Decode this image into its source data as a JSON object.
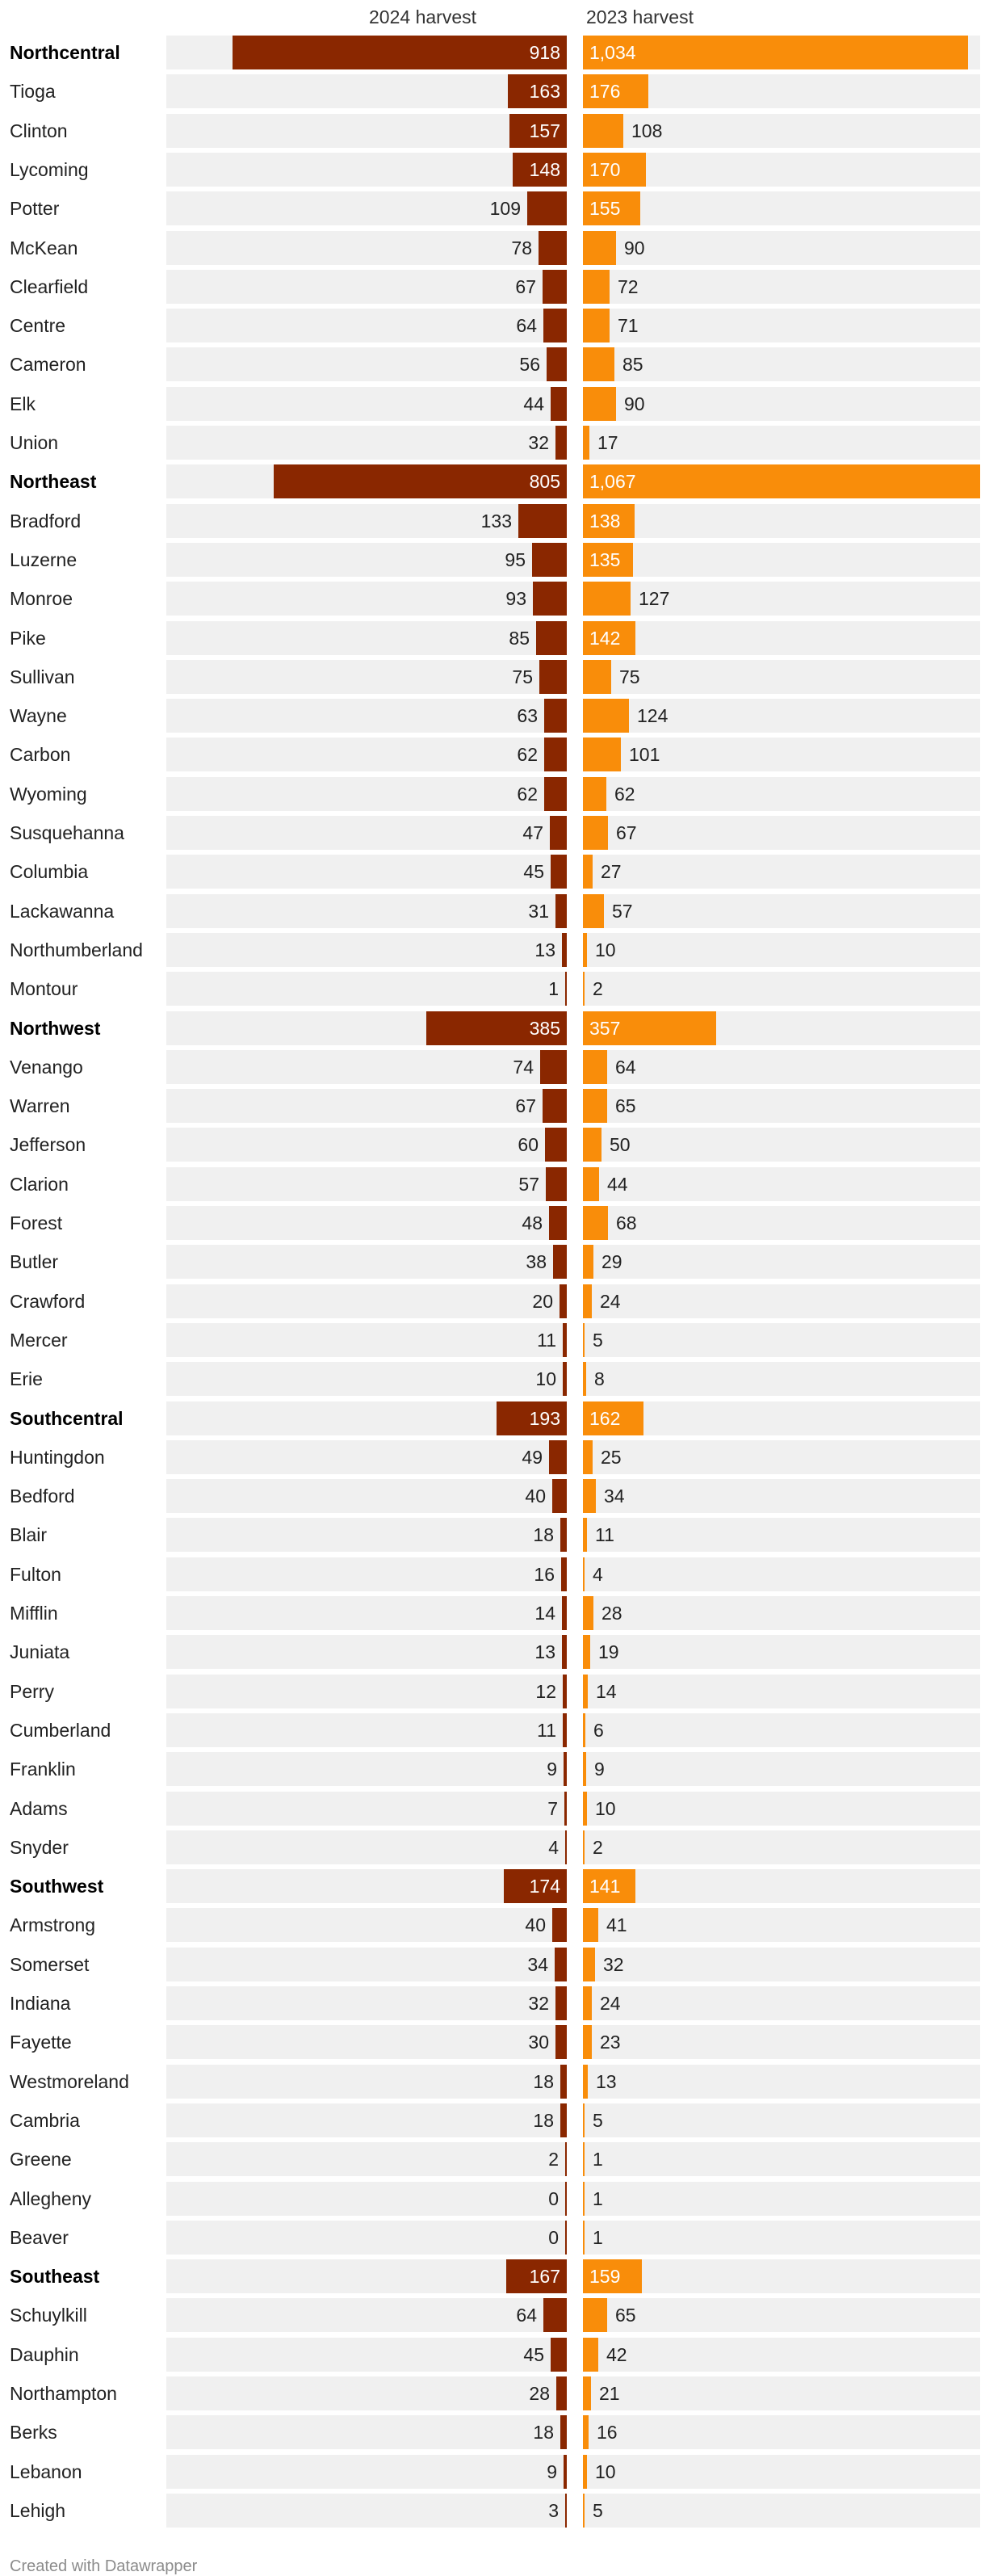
{
  "headers": {
    "col2024": "2024 harvest",
    "col2023": "2023 harvest"
  },
  "footer": "Created with Datawrapper",
  "colors": {
    "bar2024": "#8a2700",
    "bar2023": "#f98d0a",
    "rowBackground": "#f0f0f0"
  },
  "chart_data": {
    "type": "bar",
    "title": "",
    "xlabel": "",
    "ylabel": "",
    "series": [
      {
        "name": "2024 harvest",
        "color": "#8a2700"
      },
      {
        "name": "2023 harvest",
        "color": "#f98d0a"
      }
    ],
    "xlim_2024": [
      0,
      1100
    ],
    "xlim_2023": [
      0,
      1067
    ],
    "rows": [
      {
        "name": "Northcentral",
        "region": true,
        "v2024": 918,
        "v2023": 1034,
        "l2024": "918",
        "l2023": "1,034"
      },
      {
        "name": "Tioga",
        "region": false,
        "v2024": 163,
        "v2023": 176,
        "l2024": "163",
        "l2023": "176"
      },
      {
        "name": "Clinton",
        "region": false,
        "v2024": 157,
        "v2023": 108,
        "l2024": "157",
        "l2023": "108"
      },
      {
        "name": "Lycoming",
        "region": false,
        "v2024": 148,
        "v2023": 170,
        "l2024": "148",
        "l2023": "170"
      },
      {
        "name": "Potter",
        "region": false,
        "v2024": 109,
        "v2023": 155,
        "l2024": "109",
        "l2023": "155"
      },
      {
        "name": "McKean",
        "region": false,
        "v2024": 78,
        "v2023": 90,
        "l2024": "78",
        "l2023": "90"
      },
      {
        "name": "Clearfield",
        "region": false,
        "v2024": 67,
        "v2023": 72,
        "l2024": "67",
        "l2023": "72"
      },
      {
        "name": "Centre",
        "region": false,
        "v2024": 64,
        "v2023": 71,
        "l2024": "64",
        "l2023": "71"
      },
      {
        "name": "Cameron",
        "region": false,
        "v2024": 56,
        "v2023": 85,
        "l2024": "56",
        "l2023": "85"
      },
      {
        "name": "Elk",
        "region": false,
        "v2024": 44,
        "v2023": 90,
        "l2024": "44",
        "l2023": "90"
      },
      {
        "name": "Union",
        "region": false,
        "v2024": 32,
        "v2023": 17,
        "l2024": "32",
        "l2023": "17"
      },
      {
        "name": "Northeast",
        "region": true,
        "v2024": 805,
        "v2023": 1067,
        "l2024": "805",
        "l2023": "1,067"
      },
      {
        "name": "Bradford",
        "region": false,
        "v2024": 133,
        "v2023": 138,
        "l2024": "133",
        "l2023": "138"
      },
      {
        "name": "Luzerne",
        "region": false,
        "v2024": 95,
        "v2023": 135,
        "l2024": "95",
        "l2023": "135"
      },
      {
        "name": "Monroe",
        "region": false,
        "v2024": 93,
        "v2023": 127,
        "l2024": "93",
        "l2023": "127"
      },
      {
        "name": "Pike",
        "region": false,
        "v2024": 85,
        "v2023": 142,
        "l2024": "85",
        "l2023": "142"
      },
      {
        "name": "Sullivan",
        "region": false,
        "v2024": 75,
        "v2023": 75,
        "l2024": "75",
        "l2023": "75"
      },
      {
        "name": "Wayne",
        "region": false,
        "v2024": 63,
        "v2023": 124,
        "l2024": "63",
        "l2023": "124"
      },
      {
        "name": "Carbon",
        "region": false,
        "v2024": 62,
        "v2023": 101,
        "l2024": "62",
        "l2023": "101"
      },
      {
        "name": "Wyoming",
        "region": false,
        "v2024": 62,
        "v2023": 62,
        "l2024": "62",
        "l2023": "62"
      },
      {
        "name": "Susquehanna",
        "region": false,
        "v2024": 47,
        "v2023": 67,
        "l2024": "47",
        "l2023": "67"
      },
      {
        "name": "Columbia",
        "region": false,
        "v2024": 45,
        "v2023": 27,
        "l2024": "45",
        "l2023": "27"
      },
      {
        "name": "Lackawanna",
        "region": false,
        "v2024": 31,
        "v2023": 57,
        "l2024": "31",
        "l2023": "57"
      },
      {
        "name": "Northumberland",
        "region": false,
        "v2024": 13,
        "v2023": 10,
        "l2024": "13",
        "l2023": "10"
      },
      {
        "name": "Montour",
        "region": false,
        "v2024": 1,
        "v2023": 2,
        "l2024": "1",
        "l2023": "2"
      },
      {
        "name": "Northwest",
        "region": true,
        "v2024": 385,
        "v2023": 357,
        "l2024": "385",
        "l2023": "357"
      },
      {
        "name": "Venango",
        "region": false,
        "v2024": 74,
        "v2023": 64,
        "l2024": "74",
        "l2023": "64"
      },
      {
        "name": "Warren",
        "region": false,
        "v2024": 67,
        "v2023": 65,
        "l2024": "67",
        "l2023": "65"
      },
      {
        "name": "Jefferson",
        "region": false,
        "v2024": 60,
        "v2023": 50,
        "l2024": "60",
        "l2023": "50"
      },
      {
        "name": "Clarion",
        "region": false,
        "v2024": 57,
        "v2023": 44,
        "l2024": "57",
        "l2023": "44"
      },
      {
        "name": "Forest",
        "region": false,
        "v2024": 48,
        "v2023": 68,
        "l2024": "48",
        "l2023": "68"
      },
      {
        "name": "Butler",
        "region": false,
        "v2024": 38,
        "v2023": 29,
        "l2024": "38",
        "l2023": "29"
      },
      {
        "name": "Crawford",
        "region": false,
        "v2024": 20,
        "v2023": 24,
        "l2024": "20",
        "l2023": "24"
      },
      {
        "name": "Mercer",
        "region": false,
        "v2024": 11,
        "v2023": 5,
        "l2024": "11",
        "l2023": "5"
      },
      {
        "name": "Erie",
        "region": false,
        "v2024": 10,
        "v2023": 8,
        "l2024": "10",
        "l2023": "8"
      },
      {
        "name": "Southcentral",
        "region": true,
        "v2024": 193,
        "v2023": 162,
        "l2024": "193",
        "l2023": "162"
      },
      {
        "name": "Huntingdon",
        "region": false,
        "v2024": 49,
        "v2023": 25,
        "l2024": "49",
        "l2023": "25"
      },
      {
        "name": "Bedford",
        "region": false,
        "v2024": 40,
        "v2023": 34,
        "l2024": "40",
        "l2023": "34"
      },
      {
        "name": "Blair",
        "region": false,
        "v2024": 18,
        "v2023": 11,
        "l2024": "18",
        "l2023": "11"
      },
      {
        "name": "Fulton",
        "region": false,
        "v2024": 16,
        "v2023": 4,
        "l2024": "16",
        "l2023": "4"
      },
      {
        "name": "Mifflin",
        "region": false,
        "v2024": 14,
        "v2023": 28,
        "l2024": "14",
        "l2023": "28"
      },
      {
        "name": "Juniata",
        "region": false,
        "v2024": 13,
        "v2023": 19,
        "l2024": "13",
        "l2023": "19"
      },
      {
        "name": "Perry",
        "region": false,
        "v2024": 12,
        "v2023": 14,
        "l2024": "12",
        "l2023": "14"
      },
      {
        "name": "Cumberland",
        "region": false,
        "v2024": 11,
        "v2023": 6,
        "l2024": "11",
        "l2023": "6"
      },
      {
        "name": "Franklin",
        "region": false,
        "v2024": 9,
        "v2023": 9,
        "l2024": "9",
        "l2023": "9"
      },
      {
        "name": "Adams",
        "region": false,
        "v2024": 7,
        "v2023": 10,
        "l2024": "7",
        "l2023": "10"
      },
      {
        "name": "Snyder",
        "region": false,
        "v2024": 4,
        "v2023": 2,
        "l2024": "4",
        "l2023": "2"
      },
      {
        "name": "Southwest",
        "region": true,
        "v2024": 174,
        "v2023": 141,
        "l2024": "174",
        "l2023": "141"
      },
      {
        "name": "Armstrong",
        "region": false,
        "v2024": 40,
        "v2023": 41,
        "l2024": "40",
        "l2023": "41"
      },
      {
        "name": "Somerset",
        "region": false,
        "v2024": 34,
        "v2023": 32,
        "l2024": "34",
        "l2023": "32"
      },
      {
        "name": "Indiana",
        "region": false,
        "v2024": 32,
        "v2023": 24,
        "l2024": "32",
        "l2023": "24"
      },
      {
        "name": "Fayette",
        "region": false,
        "v2024": 30,
        "v2023": 23,
        "l2024": "30",
        "l2023": "23"
      },
      {
        "name": "Westmoreland",
        "region": false,
        "v2024": 18,
        "v2023": 13,
        "l2024": "18",
        "l2023": "13"
      },
      {
        "name": "Cambria",
        "region": false,
        "v2024": 18,
        "v2023": 5,
        "l2024": "18",
        "l2023": "5"
      },
      {
        "name": "Greene",
        "region": false,
        "v2024": 2,
        "v2023": 1,
        "l2024": "2",
        "l2023": "1"
      },
      {
        "name": "Allegheny",
        "region": false,
        "v2024": 0,
        "v2023": 1,
        "l2024": "0",
        "l2023": "1"
      },
      {
        "name": "Beaver",
        "region": false,
        "v2024": 0,
        "v2023": 1,
        "l2024": "0",
        "l2023": "1"
      },
      {
        "name": "Southeast",
        "region": true,
        "v2024": 167,
        "v2023": 159,
        "l2024": "167",
        "l2023": "159"
      },
      {
        "name": "Schuylkill",
        "region": false,
        "v2024": 64,
        "v2023": 65,
        "l2024": "64",
        "l2023": "65"
      },
      {
        "name": "Dauphin",
        "region": false,
        "v2024": 45,
        "v2023": 42,
        "l2024": "45",
        "l2023": "42"
      },
      {
        "name": "Northampton",
        "region": false,
        "v2024": 28,
        "v2023": 21,
        "l2024": "28",
        "l2023": "21"
      },
      {
        "name": "Berks",
        "region": false,
        "v2024": 18,
        "v2023": 16,
        "l2024": "18",
        "l2023": "16"
      },
      {
        "name": "Lebanon",
        "region": false,
        "v2024": 9,
        "v2023": 10,
        "l2024": "9",
        "l2023": "10"
      },
      {
        "name": "Lehigh",
        "region": false,
        "v2024": 3,
        "v2023": 5,
        "l2024": "3",
        "l2023": "5"
      }
    ]
  }
}
